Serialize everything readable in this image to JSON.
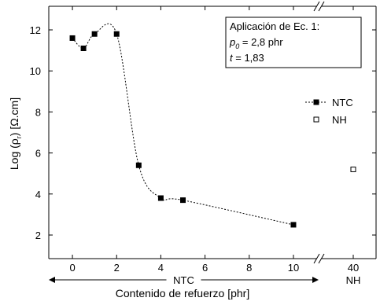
{
  "chart_data": {
    "type": "scatter",
    "y_label": {
      "before": "Log (ρ",
      "sub": "r",
      "after": ") [Ω.cm]"
    },
    "x_label": "Contenido de refuerzo [phr]",
    "ylim": [
      0.85,
      13.15
    ],
    "yticks": [
      2,
      4,
      6,
      8,
      10,
      12
    ],
    "x_segments": [
      {
        "xlim": [
          -1.07,
          11.14
        ],
        "xticks": [
          0,
          2,
          4,
          6,
          8,
          10
        ],
        "group_label": "NTC"
      },
      {
        "xlim": [
          38.58,
          41.03
        ],
        "xticks": [
          40
        ],
        "group_label": "NH"
      }
    ],
    "series": [
      {
        "name": "NTC",
        "color": "#000000",
        "marker": "filled-square",
        "curve": "dotted",
        "x": [
          0,
          0.5,
          1,
          2,
          3,
          4,
          5,
          10
        ],
        "values": [
          11.6,
          11.1,
          11.8,
          11.8,
          5.4,
          3.8,
          3.7,
          2.5
        ]
      },
      {
        "name": "NH",
        "color": "#000000",
        "marker": "open-square",
        "x": [
          40
        ],
        "values": [
          5.2
        ]
      }
    ],
    "legend": "upper right",
    "annotation": {
      "title": "Aplicación de Ec. 1:",
      "p_var": "p",
      "p_sub": "0",
      "p_text": " = 2,8 phr",
      "t_var": "t",
      "t_text": " = 1,83"
    }
  }
}
